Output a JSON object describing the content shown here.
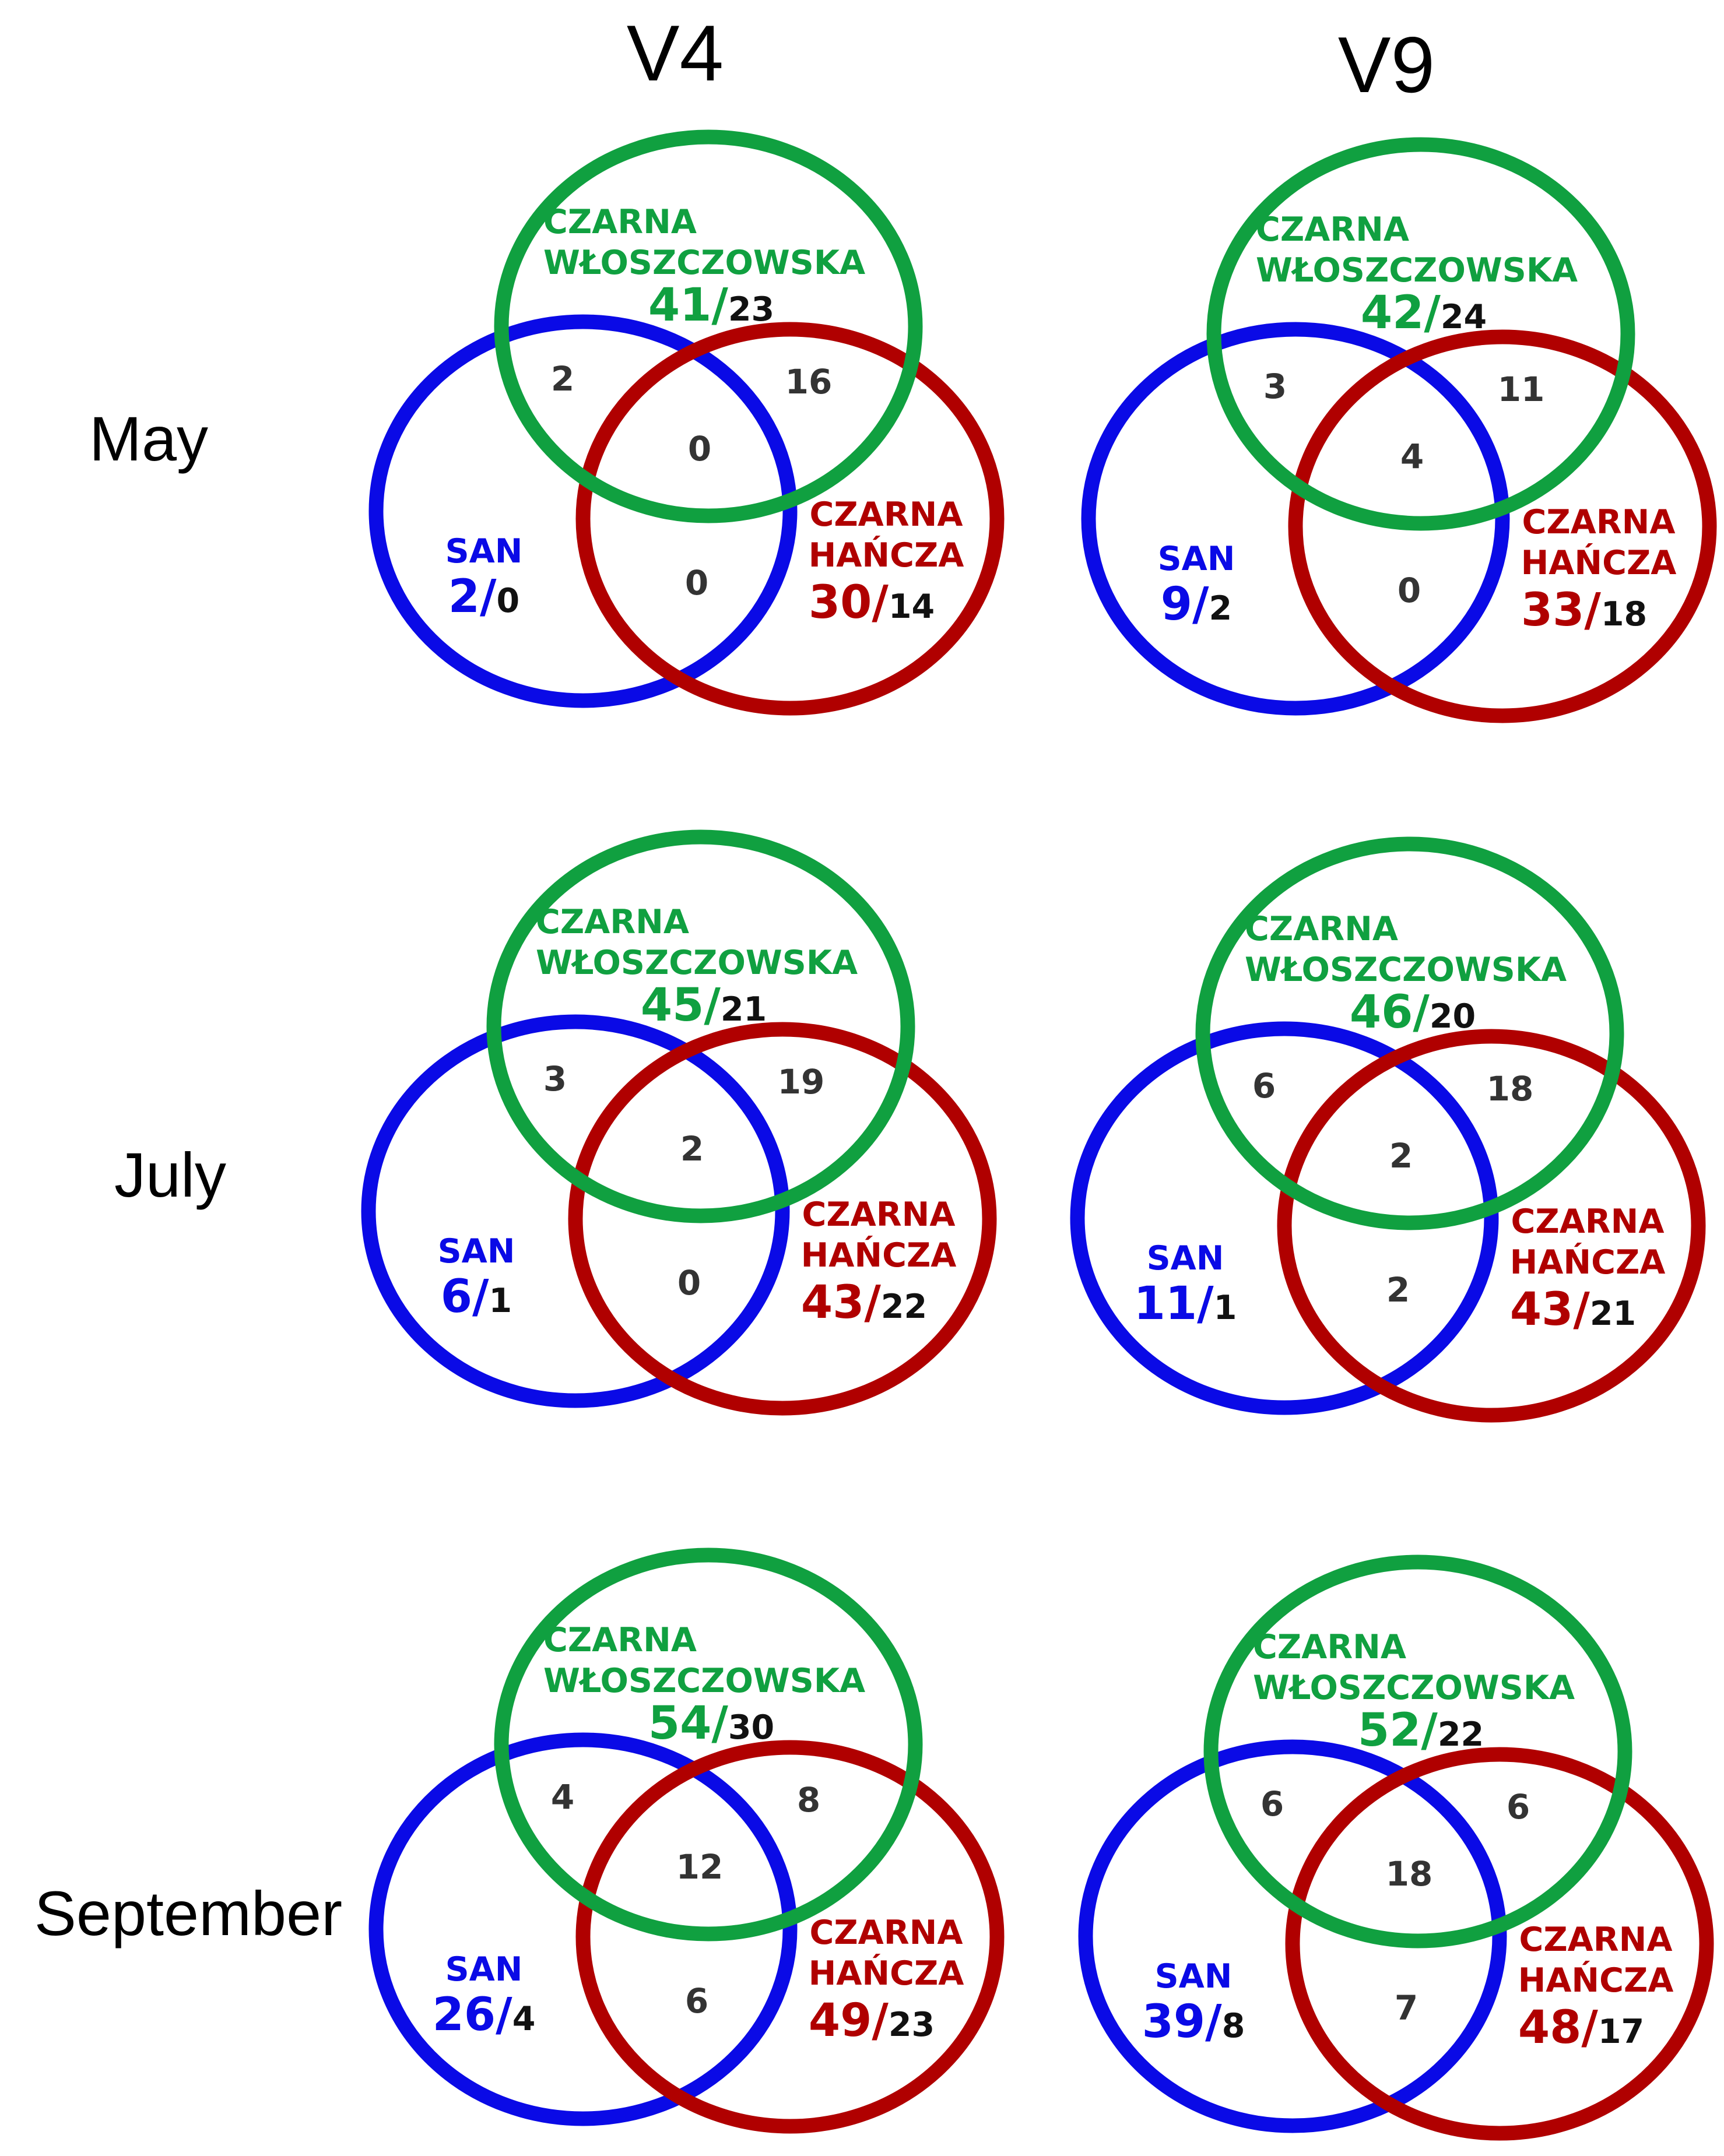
{
  "columns": [
    "V4",
    "V9"
  ],
  "rows": [
    "May",
    "July",
    "September"
  ],
  "colors": {
    "san": "#0a0ae6",
    "czarna_hancza": "#b00000",
    "czarna_wloszczowska": "#10a040"
  },
  "set_names": {
    "czarna_wloszczowska": [
      "CZARNA",
      "WŁOSZCZOWSKA"
    ],
    "czarna_hancza": [
      "CZARNA",
      "HAŃCZA"
    ],
    "san": [
      "SAN"
    ]
  },
  "diagrams": [
    {
      "row": "May",
      "col": "V4",
      "cw_total": "41/",
      "cw_unique": "23",
      "ch_total": "30/",
      "ch_unique": "14",
      "san_total": "2/",
      "san_unique": "0",
      "san_cw": "2",
      "cw_ch": "16",
      "all": "0",
      "san_ch": "0"
    },
    {
      "row": "May",
      "col": "V9",
      "cw_total": "42/",
      "cw_unique": "24",
      "ch_total": "33/",
      "ch_unique": "18",
      "san_total": "9/",
      "san_unique": "2",
      "san_cw": "3",
      "cw_ch": "11",
      "all": "4",
      "san_ch": "0"
    },
    {
      "row": "July",
      "col": "V4",
      "cw_total": "45/",
      "cw_unique": "21",
      "ch_total": "43/",
      "ch_unique": "22",
      "san_total": "6/",
      "san_unique": "1",
      "san_cw": "3",
      "cw_ch": "19",
      "all": "2",
      "san_ch": "0"
    },
    {
      "row": "July",
      "col": "V9",
      "cw_total": "46/",
      "cw_unique": "20",
      "ch_total": "43/",
      "ch_unique": "21",
      "san_total": "11/",
      "san_unique": "1",
      "san_cw": "6",
      "cw_ch": "18",
      "all": "2",
      "san_ch": "2"
    },
    {
      "row": "September",
      "col": "V4",
      "cw_total": "54/",
      "cw_unique": "30",
      "ch_total": "49/",
      "ch_unique": "23",
      "san_total": "26/",
      "san_unique": "4",
      "san_cw": "4",
      "cw_ch": "8",
      "all": "12",
      "san_ch": "6"
    },
    {
      "row": "September",
      "col": "V9",
      "cw_total": "52/",
      "cw_unique": "22",
      "ch_total": "48/",
      "ch_unique": "17",
      "san_total": "39/",
      "san_unique": "8",
      "san_cw": "6",
      "cw_ch": "6",
      "all": "18",
      "san_ch": "7"
    }
  ]
}
